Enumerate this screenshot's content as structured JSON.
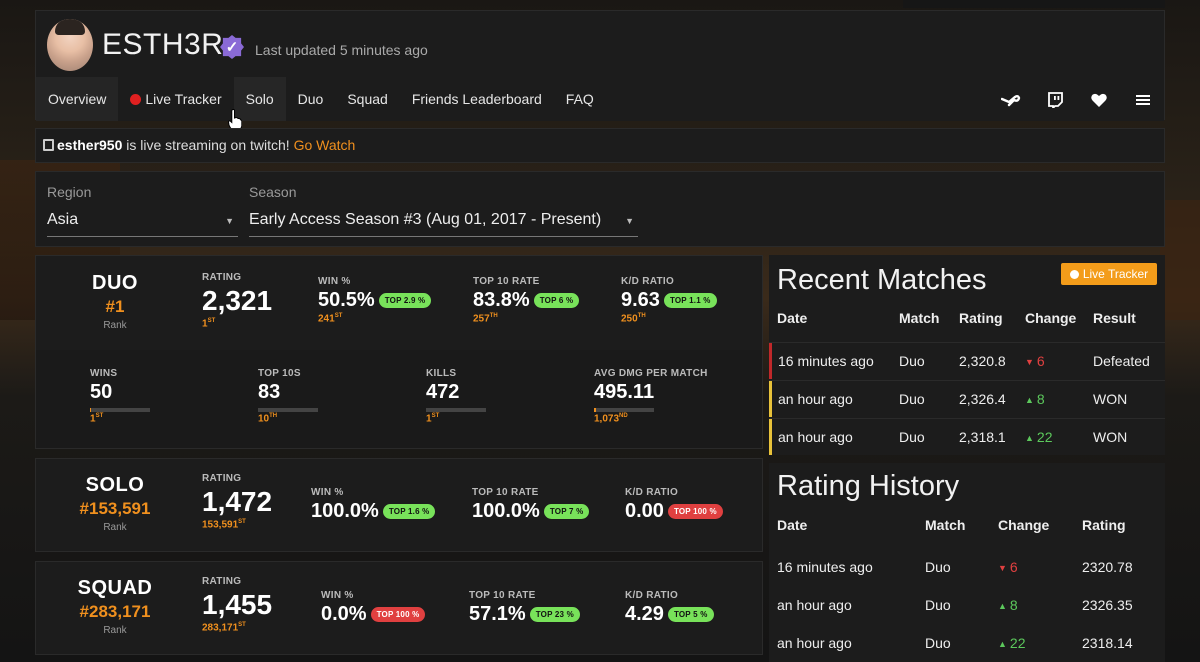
{
  "header": {
    "username": "ESTH3R",
    "verified_glyph": "✓",
    "last_updated": "Last updated 5 minutes ago",
    "nav": [
      "Overview",
      "Live Tracker",
      "Solo",
      "Duo",
      "Squad",
      "Friends Leaderboard",
      "FAQ"
    ],
    "icons": [
      "steam-icon",
      "twitch-icon",
      "heart-icon",
      "menu-icon"
    ]
  },
  "twitch": {
    "channel": "esther950",
    "text": " is live streaming on twitch! ",
    "link": "Go Watch"
  },
  "filters": {
    "region_label": "Region",
    "region_value": "Asia",
    "season_label": "Season",
    "season_value": "Early Access Season #3 (Aug 01, 2017 - Present)"
  },
  "duo": {
    "mode": "DUO",
    "rank": "#1",
    "rank_label": "Rank",
    "rating_label": "RATING",
    "rating": "2,321",
    "rating_sub": "1",
    "rating_sup": "ST",
    "win_label": "WIN %",
    "win": "50.5%",
    "win_pill": "TOP 2.9 %",
    "win_sub": "241",
    "win_sup": "ST",
    "top10_label": "TOP 10 RATE",
    "top10": "83.8%",
    "top10_pill": "TOP 6 %",
    "top10_sub": "257",
    "top10_sup": "TH",
    "kd_label": "K/D RATIO",
    "kd": "9.63",
    "kd_pill": "TOP 1.1 %",
    "kd_sub": "250",
    "kd_sup": "TH",
    "wins_label": "WINS",
    "wins": "50",
    "wins_sub": "1",
    "wins_sup": "ST",
    "wins_fill": 0.01,
    "top10s_label": "TOP 10S",
    "top10s": "83",
    "top10s_sub": "10",
    "top10s_sup": "TH",
    "top10s_fill": 0.0,
    "kills_label": "KILLS",
    "kills": "472",
    "kills_sub": "1",
    "kills_sup": "ST",
    "kills_fill": 0.0,
    "dmg_label": "AVG DMG PER MATCH",
    "dmg": "495.11",
    "dmg_sub": "1,073",
    "dmg_sup": "ND",
    "dmg_fill": 0.04
  },
  "solo": {
    "mode": "SOLO",
    "rank": "#153,591",
    "rank_label": "Rank",
    "rating_label": "RATING",
    "rating": "1,472",
    "rating_sub": "153,591",
    "rating_sup": "ST",
    "win_label": "WIN %",
    "win": "100.0%",
    "win_pill": "TOP 1.6 %",
    "top10_label": "TOP 10 RATE",
    "top10": "100.0%",
    "top10_pill": "TOP 7 %",
    "kd_label": "K/D RATIO",
    "kd": "0.00",
    "kd_pill": "TOP 100 %"
  },
  "squad": {
    "mode": "SQUAD",
    "rank": "#283,171",
    "rank_label": "Rank",
    "rating_label": "RATING",
    "rating": "1,455",
    "rating_sub": "283,171",
    "rating_sup": "ST",
    "win_label": "WIN %",
    "win": "0.0%",
    "win_pill": "TOP 100 %",
    "top10_label": "TOP 10 RATE",
    "top10": "57.1%",
    "top10_pill": "TOP 23 %",
    "kd_label": "K/D RATIO",
    "kd": "4.29",
    "kd_pill": "TOP 5 %"
  },
  "recent": {
    "title": "Recent Matches",
    "live_button": "Live Tracker",
    "headers": [
      "Date",
      "Match",
      "Rating",
      "Change",
      "Result"
    ],
    "rows": [
      {
        "date": "16 minutes ago",
        "match": "Duo",
        "rating": "2,320.8",
        "change": "6",
        "dir": "down",
        "result": "Defeated",
        "color": "#c0282a"
      },
      {
        "date": "an hour ago",
        "match": "Duo",
        "rating": "2,326.4",
        "change": "8",
        "dir": "up",
        "result": "WON",
        "color": "#e8c23a"
      },
      {
        "date": "an hour ago",
        "match": "Duo",
        "rating": "2,318.1",
        "change": "22",
        "dir": "up",
        "result": "WON",
        "color": "#e8c23a"
      }
    ]
  },
  "history": {
    "title": "Rating History",
    "headers": [
      "Date",
      "Match",
      "Change",
      "Rating"
    ],
    "rows": [
      {
        "date": "16 minutes ago",
        "match": "Duo",
        "change": "6",
        "dir": "down",
        "rating": "2320.78"
      },
      {
        "date": "an hour ago",
        "match": "Duo",
        "change": "8",
        "dir": "up",
        "rating": "2326.35"
      },
      {
        "date": "an hour ago",
        "match": "Duo",
        "change": "22",
        "dir": "up",
        "rating": "2318.14"
      }
    ]
  }
}
